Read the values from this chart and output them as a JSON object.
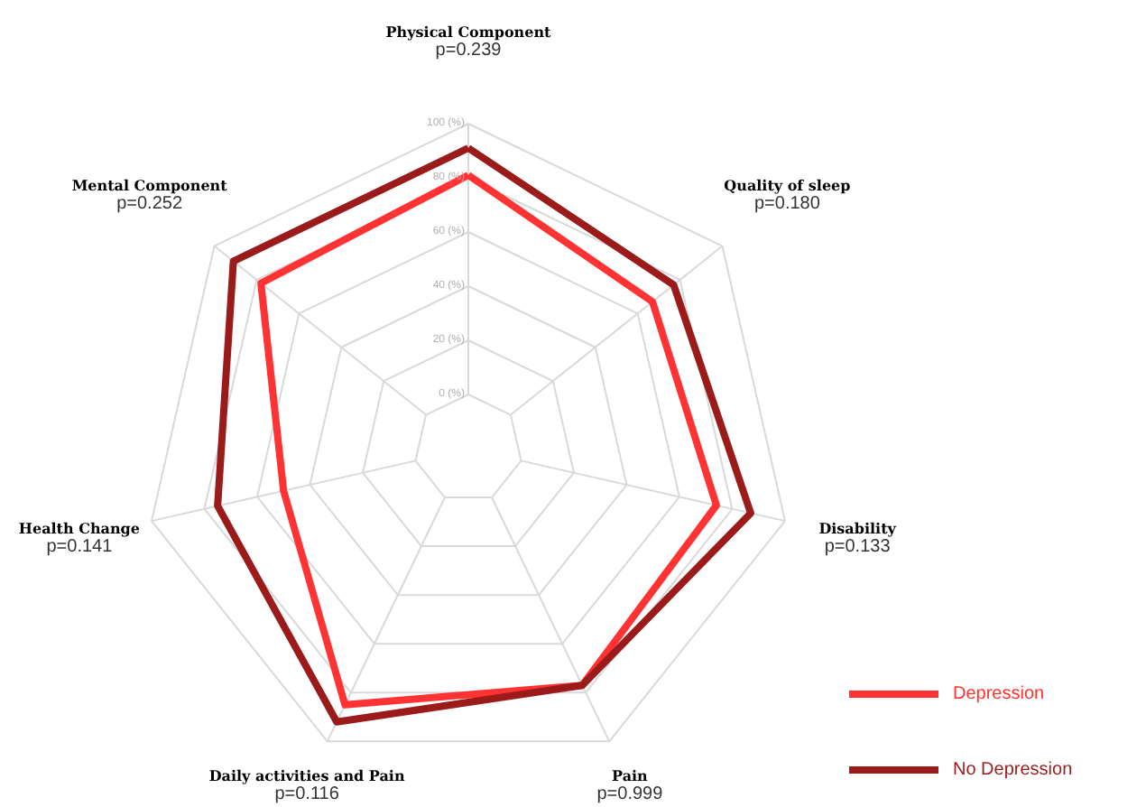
{
  "chart_data": {
    "type": "radar",
    "categories": [
      "Physical Component\np=0.239",
      "Quality of sleep\np=0.180",
      "Disability\np=0.133",
      "Pain\np=0.999",
      "Daily activities and Pain\np=0.116",
      "Health Change\np=0.141",
      "Mental Component\np=0.252"
    ],
    "series": [
      {
        "name": "Depression",
        "color": "#ff3333",
        "values": [
          81,
          67,
          74,
          77,
          85,
          50,
          78
        ]
      },
      {
        "name": "No Depression",
        "color": "#9b1b1b",
        "values": [
          91,
          77,
          87,
          77,
          92,
          75,
          91
        ]
      }
    ],
    "ylim": [
      -20,
      100
    ],
    "yticks": [
      {
        "value": 0,
        "label": "0 (%)"
      },
      {
        "value": 20,
        "label": "20 (%)"
      },
      {
        "value": 40,
        "label": "40 (%)"
      },
      {
        "value": 60,
        "label": "60 (%)"
      },
      {
        "value": 80,
        "label": "80 (%)"
      },
      {
        "value": 100,
        "label": "100 (%)"
      }
    ],
    "grid": true,
    "legend": "bottom right"
  }
}
